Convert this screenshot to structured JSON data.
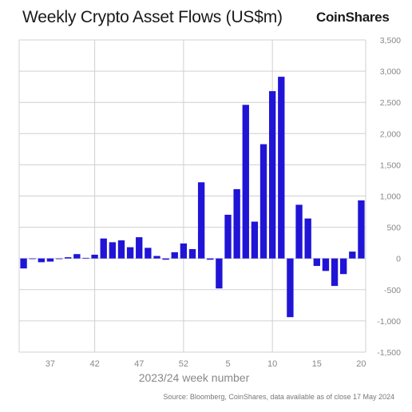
{
  "header": {
    "title": "Weekly Crypto Asset Flows (US$m)",
    "brand": "CoinShares"
  },
  "footer": {
    "source": "Source: Bloomberg, CoinShares, data available as of close 17 May 2024"
  },
  "colors": {
    "bar": "#2014d6",
    "grid": "#d0d0d0",
    "axis_text": "#888888"
  },
  "chart_data": {
    "type": "bar",
    "title": "Weekly Crypto Asset Flows (US$m)",
    "xlabel": "2023/24 week number",
    "ylabel": "",
    "ylim": [
      -1500,
      3500
    ],
    "yticks": [
      -1500,
      -1000,
      -500,
      0,
      500,
      1000,
      1500,
      2000,
      2500,
      3000,
      3500
    ],
    "ytick_labels": [
      "-1,500",
      "-1,000",
      "-500",
      "0",
      "500",
      "1,000",
      "1,500",
      "2,000",
      "2,500",
      "3,000",
      "3,500"
    ],
    "xtick_labels": [
      {
        "index": 3,
        "label": "37"
      },
      {
        "index": 8,
        "label": "42"
      },
      {
        "index": 13,
        "label": "47"
      },
      {
        "index": 18,
        "label": "52"
      },
      {
        "index": 23,
        "label": "5"
      },
      {
        "index": 28,
        "label": "10"
      },
      {
        "index": 33,
        "label": "15"
      },
      {
        "index": 38,
        "label": "20"
      }
    ],
    "vgrid_after_index": [
      8,
      18,
      28
    ],
    "weeks": [
      "34",
      "35",
      "36",
      "37",
      "38",
      "39",
      "40",
      "41",
      "42",
      "43",
      "44",
      "45",
      "46",
      "47",
      "48",
      "49",
      "50",
      "51",
      "52",
      "1",
      "2",
      "3",
      "4",
      "5",
      "6",
      "7",
      "8",
      "9",
      "10",
      "11",
      "12",
      "13",
      "14",
      "15",
      "16",
      "17",
      "18",
      "19",
      "20"
    ],
    "values": [
      -160,
      0,
      -60,
      -50,
      0,
      20,
      70,
      10,
      60,
      320,
      260,
      290,
      180,
      340,
      170,
      40,
      -20,
      100,
      240,
      150,
      1220,
      -20,
      -480,
      700,
      1110,
      2460,
      590,
      1830,
      2680,
      2910,
      -940,
      860,
      640,
      -120,
      -200,
      -440,
      -250,
      110,
      930
    ]
  }
}
